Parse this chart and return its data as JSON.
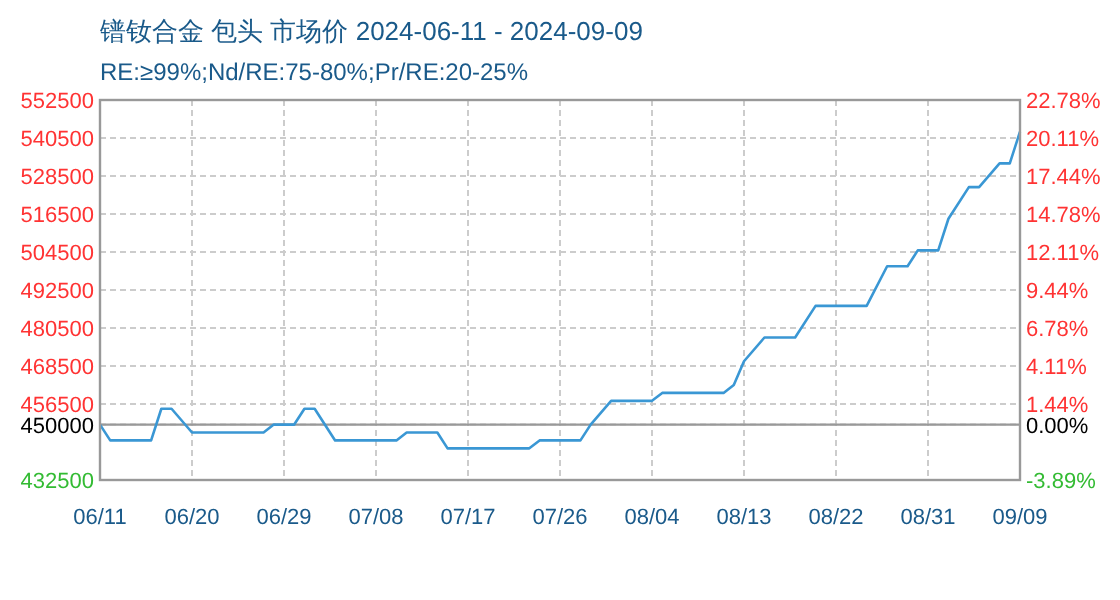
{
  "chart_data": {
    "type": "line",
    "title": "镨钕合金 包头 市场价 2024-06-11 - 2024-09-09",
    "subtitle": "RE:≥99%;Nd/RE:75-80%;Pr/RE:20-25%",
    "x": [
      "2024-06-11",
      "2024-06-12",
      "2024-06-16",
      "2024-06-17",
      "2024-06-18",
      "2024-06-20",
      "2024-06-27",
      "2024-06-28",
      "2024-06-30",
      "2024-07-01",
      "2024-07-02",
      "2024-07-04",
      "2024-07-10",
      "2024-07-11",
      "2024-07-14",
      "2024-07-15",
      "2024-07-23",
      "2024-07-24",
      "2024-07-28",
      "2024-07-29",
      "2024-07-31",
      "2024-08-04",
      "2024-08-05",
      "2024-08-11",
      "2024-08-12",
      "2024-08-13",
      "2024-08-15",
      "2024-08-18",
      "2024-08-20",
      "2024-08-25",
      "2024-08-27",
      "2024-08-29",
      "2024-08-30",
      "2024-09-01",
      "2024-09-02",
      "2024-09-04",
      "2024-09-05",
      "2024-09-07",
      "2024-09-08",
      "2024-09-09"
    ],
    "series": [
      {
        "color": "#3a97d4",
        "values": [
          450000,
          445000,
          445000,
          455000,
          455000,
          447500,
          447500,
          450000,
          450000,
          455000,
          455000,
          445000,
          445000,
          447500,
          447500,
          442500,
          442500,
          445000,
          445000,
          450000,
          457500,
          457500,
          460000,
          460000,
          462500,
          470000,
          477500,
          477500,
          487500,
          487500,
          500000,
          500000,
          505000,
          505000,
          515000,
          525000,
          525000,
          532500,
          532500,
          542500
        ]
      }
    ],
    "xlim": [
      "2024-06-11",
      "2024-09-09"
    ],
    "xticks": [
      {
        "value": "2024-06-11",
        "label": "06/11"
      },
      {
        "value": "2024-06-20",
        "label": "06/20"
      },
      {
        "value": "2024-06-29",
        "label": "06/29"
      },
      {
        "value": "2024-07-08",
        "label": "07/08"
      },
      {
        "value": "2024-07-17",
        "label": "07/17"
      },
      {
        "value": "2024-07-26",
        "label": "07/26"
      },
      {
        "value": "2024-08-04",
        "label": "08/04"
      },
      {
        "value": "2024-08-13",
        "label": "08/13"
      },
      {
        "value": "2024-08-22",
        "label": "08/22"
      },
      {
        "value": "2024-08-31",
        "label": "08/31"
      },
      {
        "value": "2024-09-09",
        "label": "09/09"
      }
    ],
    "ylim": [
      432500,
      552500
    ],
    "yticks": [
      432500,
      450000,
      456500,
      468500,
      480500,
      492500,
      504500,
      516500,
      528500,
      540500,
      552500
    ],
    "y2lim": [
      -3.89,
      22.78
    ],
    "y2ticks": [
      {
        "value": -3.89,
        "label": "-3.89%"
      },
      {
        "value": 0,
        "label": "0.00%"
      },
      {
        "value": 1.44,
        "label": "1.44%"
      },
      {
        "value": 4.11,
        "label": "4.11%"
      },
      {
        "value": 6.78,
        "label": "6.78%"
      },
      {
        "value": 9.44,
        "label": "9.44%"
      },
      {
        "value": 12.11,
        "label": "12.11%"
      },
      {
        "value": 14.78,
        "label": "14.78%"
      },
      {
        "value": 17.44,
        "label": "17.44%"
      },
      {
        "value": 20.11,
        "label": "20.11%"
      },
      {
        "value": 22.78,
        "label": "22.78%"
      }
    ],
    "ref_lines": [
      {
        "axis": "y",
        "value": 450000,
        "color": "#999999"
      }
    ],
    "grid": true,
    "line_style": "solid",
    "marker": "none"
  }
}
